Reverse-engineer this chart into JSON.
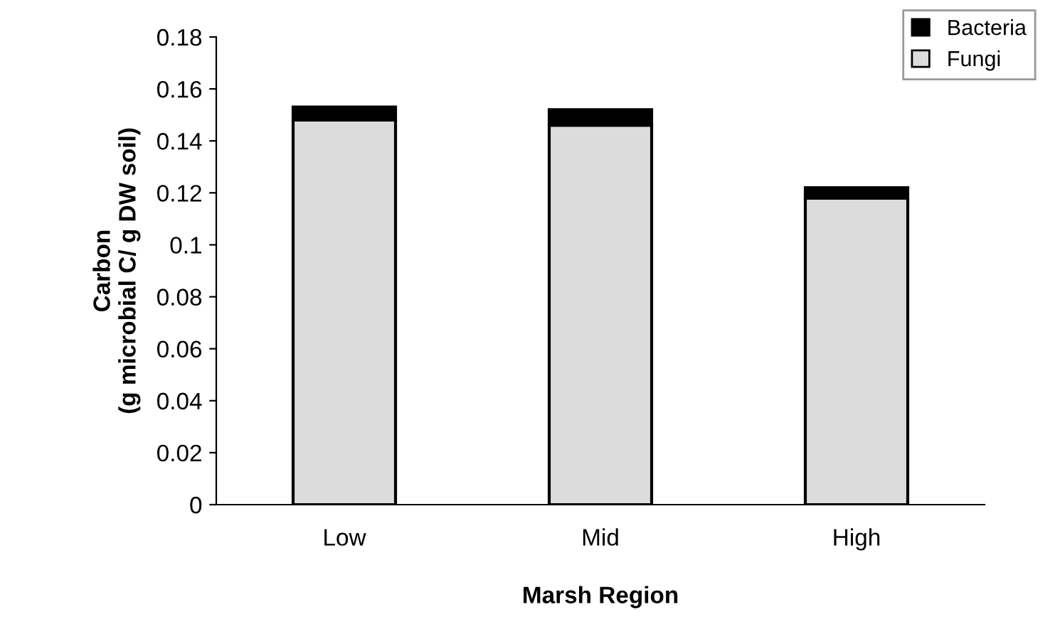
{
  "chart_data": {
    "type": "bar",
    "stacked": true,
    "xlabel": "Marsh Region",
    "ylabel": "Carbon\n(g microbial C/ g DW soil)",
    "categories": [
      "Low",
      "Mid",
      "High"
    ],
    "series": [
      {
        "name": "Fungi",
        "color": "#dcdcdc",
        "values": [
          0.148,
          0.146,
          0.118
        ]
      },
      {
        "name": "Bacteria",
        "color": "#000000",
        "values": [
          0.005,
          0.006,
          0.004
        ]
      }
    ],
    "ylim": [
      0,
      0.18
    ],
    "yticks": [
      0,
      0.02,
      0.04,
      0.06,
      0.08,
      {
        "value": 0.1,
        "label": "0.1"
      },
      0.12,
      0.14,
      0.16,
      0.18
    ],
    "grid": false,
    "legend": "top right"
  }
}
